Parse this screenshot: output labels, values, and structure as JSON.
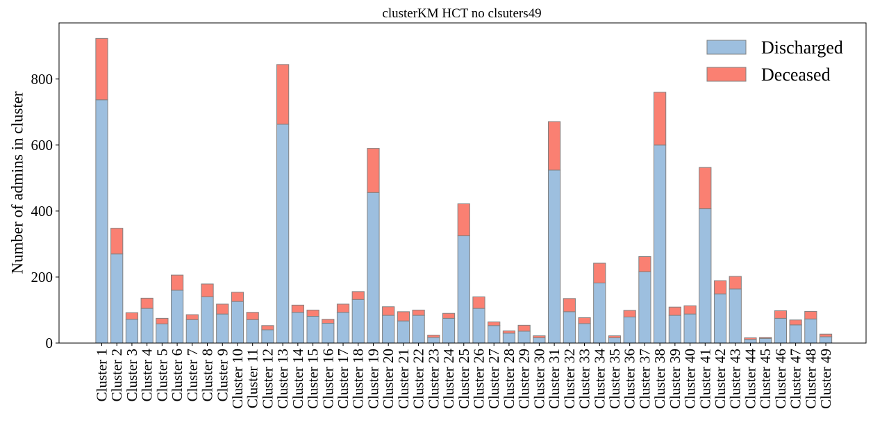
{
  "chart_data": {
    "type": "bar",
    "stacked": true,
    "title": "clusterKM HCT no clsuters49",
    "xlabel": "",
    "ylabel": "Number of admins in cluster",
    "ylim": [
      0,
      970
    ],
    "yticks": [
      0,
      200,
      400,
      600,
      800
    ],
    "grid": false,
    "legend_position": "top-right",
    "categories": [
      "Cluster 1",
      "Cluster 2",
      "Cluster 3",
      "Cluster 4",
      "Cluster 5",
      "Cluster 6",
      "Cluster 7",
      "Cluster 8",
      "Cluster 9",
      "Cluster 10",
      "Cluster 11",
      "Cluster 12",
      "Cluster 13",
      "Cluster 14",
      "Cluster 15",
      "Cluster 16",
      "Cluster 17",
      "Cluster 18",
      "Cluster 19",
      "Cluster 20",
      "Cluster 21",
      "Cluster 22",
      "Cluster 23",
      "Cluster 24",
      "Cluster 25",
      "Cluster 26",
      "Cluster 27",
      "Cluster 28",
      "Cluster 29",
      "Cluster 30",
      "Cluster 31",
      "Cluster 32",
      "Cluster 33",
      "Cluster 34",
      "Cluster 35",
      "Cluster 36",
      "Cluster 37",
      "Cluster 38",
      "Cluster 39",
      "Cluster 40",
      "Cluster 41",
      "Cluster 42",
      "Cluster 43",
      "Cluster 44",
      "Cluster 45",
      "Cluster 46",
      "Cluster 47",
      "Cluster 48",
      "Cluster 49"
    ],
    "series": [
      {
        "name": "Discharged",
        "color": "#9dbfdf",
        "values": [
          737,
          270,
          72,
          105,
          58,
          160,
          71,
          140,
          88,
          126,
          71,
          40,
          663,
          93,
          81,
          60,
          93,
          132,
          456,
          84,
          67,
          84,
          17,
          75,
          325,
          105,
          53,
          30,
          36,
          16,
          524,
          95,
          59,
          182,
          16,
          79,
          216,
          600,
          84,
          88,
          407,
          149,
          164,
          11,
          14,
          75,
          55,
          73,
          19
        ]
      },
      {
        "name": "Deceased",
        "color": "#fa8072",
        "values": [
          186,
          78,
          20,
          31,
          17,
          46,
          15,
          39,
          30,
          28,
          22,
          13,
          181,
          22,
          19,
          12,
          25,
          24,
          134,
          26,
          28,
          16,
          7,
          15,
          97,
          35,
          11,
          7,
          18,
          6,
          147,
          40,
          18,
          60,
          6,
          20,
          46,
          160,
          25,
          25,
          125,
          40,
          38,
          5,
          3,
          23,
          15,
          23,
          8
        ]
      }
    ]
  }
}
